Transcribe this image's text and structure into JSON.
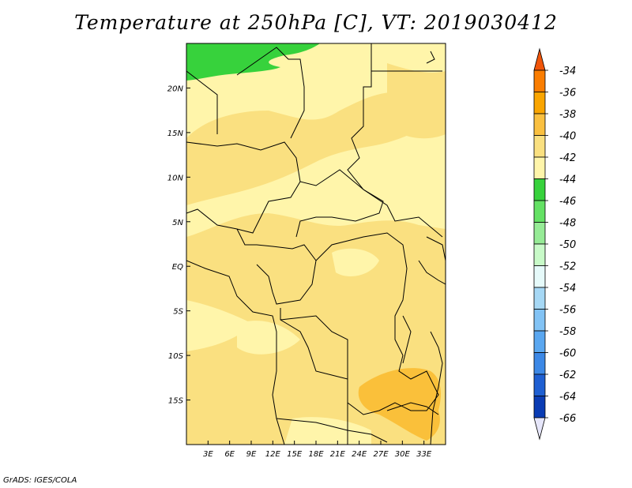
{
  "title": "Temperature at 250hPa [C], VT: 2019030412",
  "credit": "GrADS: IGES/COLA",
  "map": {
    "lon_range": [
      0,
      36
    ],
    "lat_range": [
      -20,
      25
    ],
    "lon_ticks": [
      "3E",
      "6E",
      "9E",
      "12E",
      "15E",
      "18E",
      "21E",
      "24E",
      "27E",
      "30E",
      "33E"
    ],
    "lon_tick_values": [
      3,
      6,
      9,
      12,
      15,
      18,
      21,
      24,
      27,
      30,
      33
    ],
    "lat_ticks": [
      "20N",
      "15N",
      "10N",
      "5N",
      "EQ",
      "5S",
      "10S",
      "15S"
    ],
    "lat_tick_values": [
      20,
      15,
      10,
      5,
      0,
      -5,
      -10,
      -15
    ]
  },
  "legend": {
    "labels": [
      "-34",
      "-36",
      "-38",
      "-40",
      "-42",
      "-44",
      "-46",
      "-48",
      "-50",
      "-52",
      "-54",
      "-56",
      "-58",
      "-60",
      "-62",
      "-64",
      "-66"
    ],
    "colors": [
      "#f0550a",
      "#fa7d00",
      "#faa500",
      "#fac040",
      "#fae080",
      "#fff5aa",
      "#37d23c",
      "#64e164",
      "#96eb96",
      "#c8fac8",
      "#e6fafa",
      "#a6d8f5",
      "#82c3f5",
      "#5aa7f0",
      "#3c88e6",
      "#1e5fd2",
      "#0a3cb4",
      "#08197d",
      "#e6e6fa"
    ]
  }
}
